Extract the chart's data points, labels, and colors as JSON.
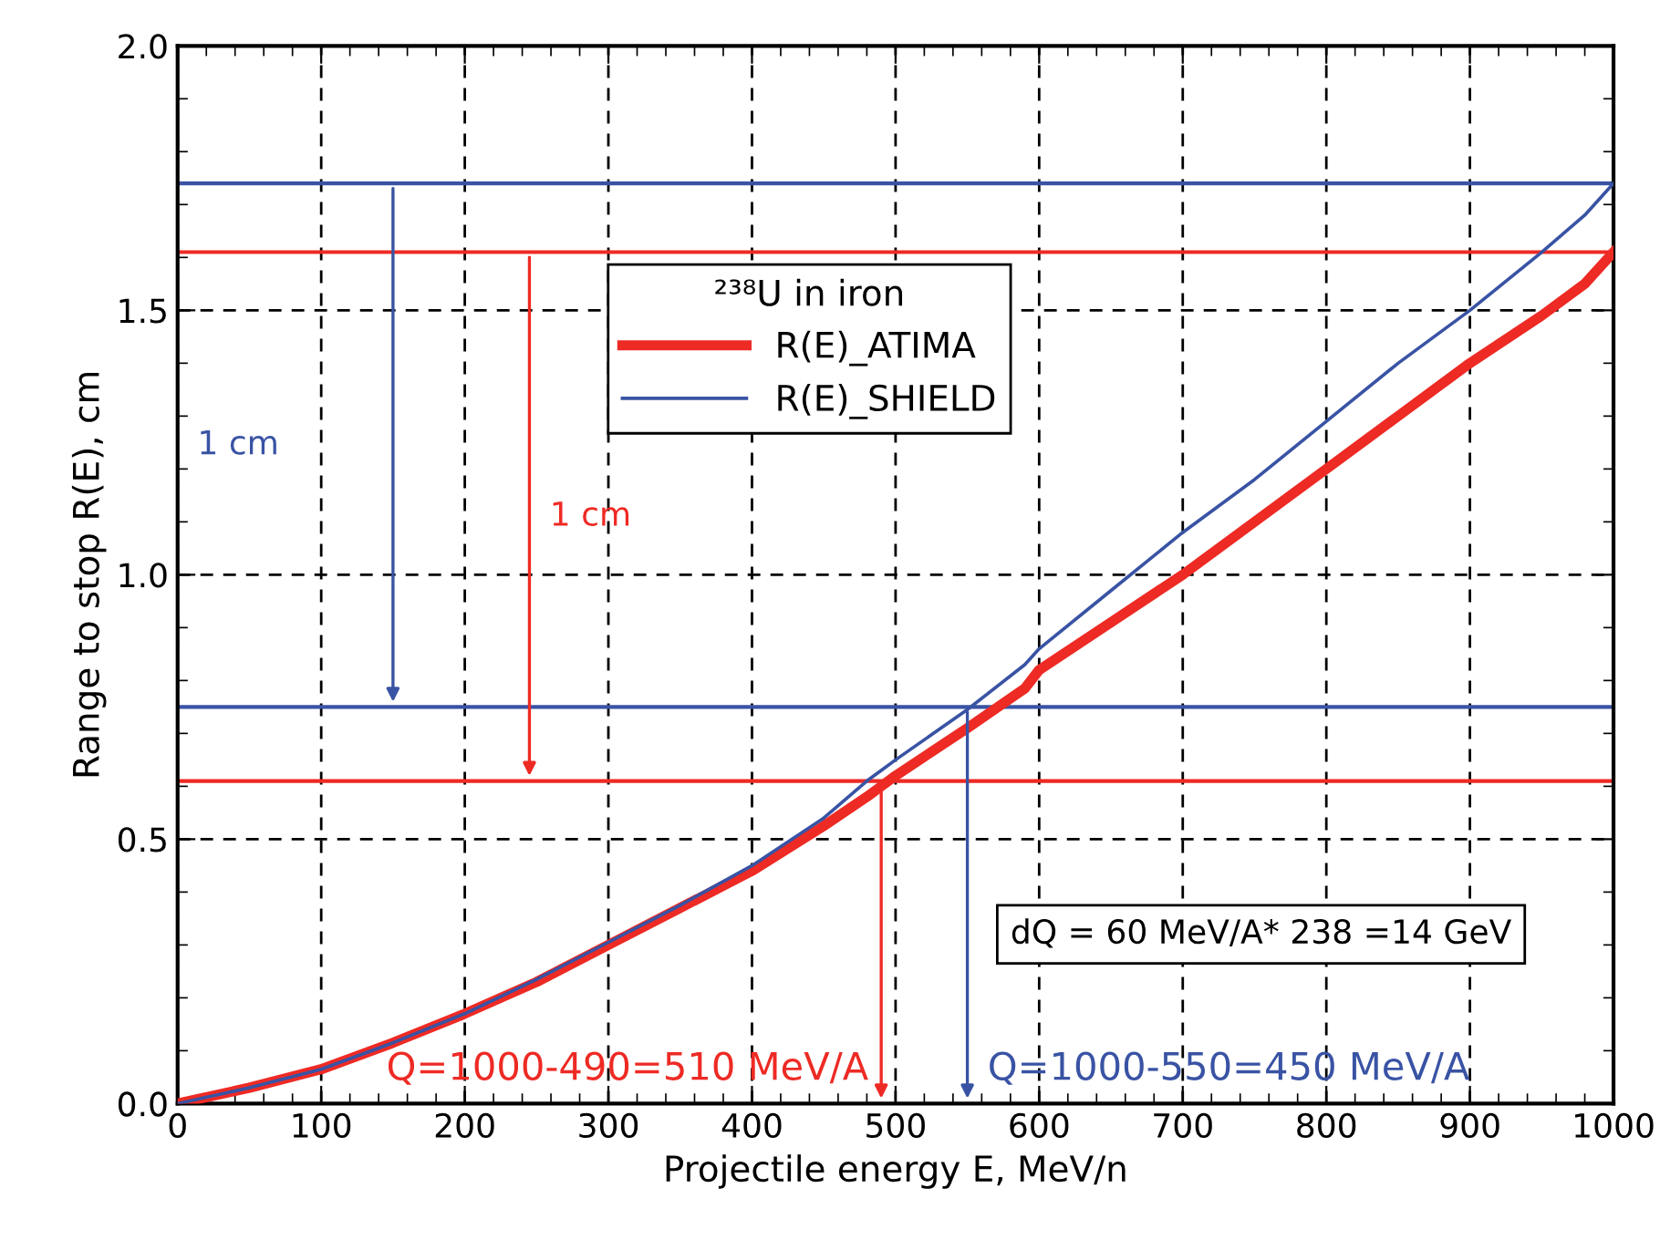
{
  "chart_data": {
    "type": "line",
    "xlabel": "Projectile energy E, MeV/n",
    "ylabel": "Range to stop R(E), cm",
    "legend_title": "²³⁸U in iron",
    "series": [
      {
        "name": "R(E)_ATIMA",
        "color": "#ee2a24",
        "x": [
          0,
          50,
          100,
          150,
          200,
          250,
          300,
          350,
          400,
          450,
          480,
          490,
          500,
          550,
          590,
          600,
          650,
          700,
          750,
          800,
          850,
          900,
          950,
          980,
          1000
        ],
        "values": [
          0,
          0.03,
          0.065,
          0.115,
          0.17,
          0.23,
          0.3,
          0.37,
          0.44,
          0.525,
          0.58,
          0.6,
          0.62,
          0.71,
          0.785,
          0.82,
          0.91,
          1.0,
          1.1,
          1.2,
          1.3,
          1.4,
          1.49,
          1.55,
          1.61
        ]
      },
      {
        "name": "R(E)_SHIELD",
        "color": "#3953a4",
        "x": [
          0,
          50,
          100,
          150,
          200,
          250,
          300,
          350,
          400,
          450,
          480,
          490,
          500,
          550,
          590,
          600,
          650,
          700,
          750,
          800,
          850,
          900,
          950,
          980,
          1000
        ],
        "values": [
          0,
          0.03,
          0.065,
          0.115,
          0.17,
          0.235,
          0.305,
          0.375,
          0.45,
          0.54,
          0.61,
          0.63,
          0.65,
          0.745,
          0.83,
          0.86,
          0.97,
          1.08,
          1.18,
          1.29,
          1.4,
          1.5,
          1.61,
          1.68,
          1.74
        ]
      }
    ],
    "ref_lines": [
      {
        "axis": "y",
        "value": 1.74,
        "color": "#3953a4"
      },
      {
        "axis": "y",
        "value": 1.61,
        "color": "#ee2a24"
      },
      {
        "axis": "y",
        "value": 0.75,
        "color": "#3953a4"
      },
      {
        "axis": "y",
        "value": 0.61,
        "color": "#ee2a24"
      }
    ],
    "annotations": [
      "1 cm",
      "1 cm",
      {
        "text": "Q=1000-490=510 MeV/A",
        "x": 490,
        "y": 0.61
      },
      {
        "text": "Q=1000-550=450 MeV/A",
        "x": 550,
        "y": 0.75
      },
      "dQ = 60 MeV/A* 238 =14 GeV"
    ],
    "xlim": [
      0,
      1000
    ],
    "ylim": [
      0,
      2.0
    ],
    "xticks": [
      0,
      100,
      200,
      300,
      400,
      500,
      600,
      700,
      800,
      900,
      1000
    ],
    "yticks": [
      {
        "value": 0,
        "label": "0.0"
      },
      0.5,
      {
        "value": 1,
        "label": "1.0"
      },
      1.5,
      {
        "value": 2,
        "label": "2.0"
      }
    ],
    "grid": true,
    "legend": "top",
    "marker": "none",
    "line_style": "solid"
  }
}
